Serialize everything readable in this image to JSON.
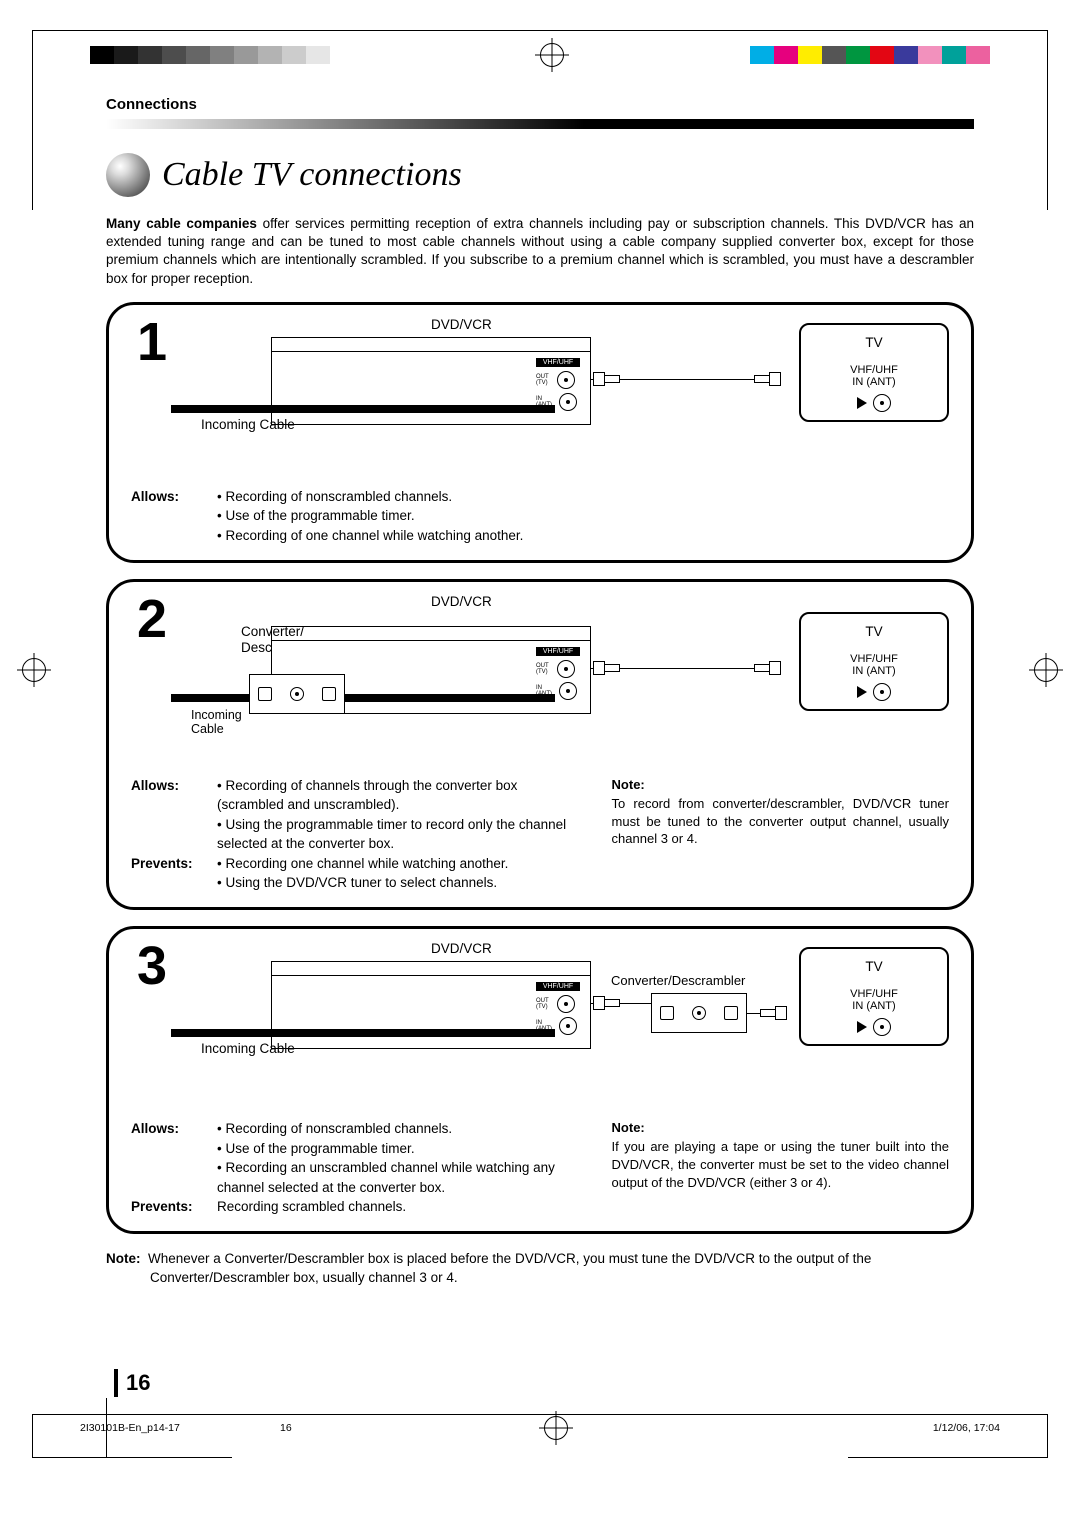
{
  "header": {
    "section": "Connections"
  },
  "title": "Cable TV connections",
  "intro_bold": "Many cable companies",
  "intro_text": " offer services permitting reception of extra channels including pay or subscription channels. This DVD/VCR has an extended tuning range and can be tuned to most cable channels without using a cable company supplied converter box, except for those premium channels which are intentionally scrambled. If you subscribe to a premium channel which is scrambled, you must have a descrambler box for proper reception.",
  "labels": {
    "dvdvcr": "DVD/VCR",
    "tv": "TV",
    "vhfuhf": "VHF/UHF",
    "inant": "IN (ANT)",
    "incoming_cable": "Incoming Cable",
    "incoming": "Incoming",
    "cable": "Cable",
    "converter": "Converter/",
    "descrambler": "Descrambler",
    "conv_desc_inline": "Converter/Descrambler"
  },
  "panel1": {
    "num": "1",
    "allows_label": "Allows:",
    "allows": [
      "Recording of nonscrambled channels.",
      "Use of the programmable timer.",
      "Recording of one channel while watching another."
    ]
  },
  "panel2": {
    "num": "2",
    "allows_label": "Allows:",
    "allows": [
      "Recording of channels through the converter box (scrambled and unscrambled).",
      "Using the programmable timer to record only the channel selected at the converter box."
    ],
    "prevents_label": "Prevents:",
    "prevents": [
      "Recording one channel while watching another.",
      "Using the DVD/VCR tuner to select channels."
    ],
    "note_head": "Note:",
    "note_text": "To record from converter/descrambler, DVD/VCR tuner must be tuned to the converter output channel, usually channel 3 or 4."
  },
  "panel3": {
    "num": "3",
    "allows_label": "Allows:",
    "allows": [
      "Recording of nonscrambled channels.",
      "Use of the programmable timer.",
      "Recording an unscrambled channel while watching any channel selected at the converter box."
    ],
    "prevents_label": "Prevents:",
    "prevents": "Recording scrambled channels.",
    "note_head": "Note:",
    "note_text": "If you are playing a tape or using the tuner built into the DVD/VCR, the converter must be set to the video channel output of the DVD/VCR (either 3 or 4)."
  },
  "footnote_label": "Note:",
  "footnote_text": "Whenever a Converter/Descrambler box is placed before the DVD/VCR, you must tune the DVD/VCR to the output of the Converter/Descrambler box, usually channel 3 or 4.",
  "page_number": "16",
  "footer": {
    "file": "2I30101B-En_p14-17",
    "pg": "16",
    "timestamp": "1/12/06, 17:04"
  },
  "colors": {
    "grays": [
      "#000000",
      "#1a1a1a",
      "#333333",
      "#4d4d4d",
      "#666666",
      "#808080",
      "#999999",
      "#b3b3b3",
      "#cccccc",
      "#e6e6e6",
      "#ffffff"
    ],
    "colorbar": [
      "#00aee6",
      "#e6007e",
      "#ffed00",
      "#555555",
      "#009640",
      "#e30613",
      "#3a3a9c",
      "#f291bd",
      "#00a19a",
      "#ec619f"
    ]
  }
}
